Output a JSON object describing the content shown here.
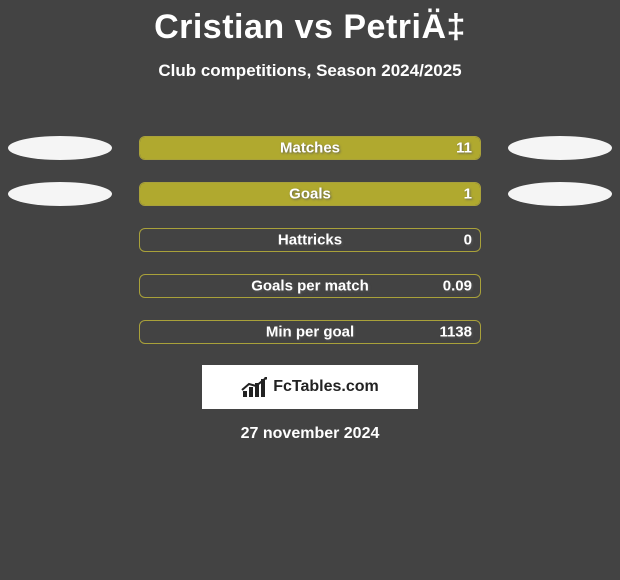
{
  "header": {
    "title": "Cristian vs PetriÄ‡",
    "subtitle": "Club competitions, Season 2024/2025"
  },
  "colors": {
    "background": "#434343",
    "pill_fill": "#b0a92f",
    "pill_border": "#a9a13a",
    "ellipse": "#f5f5f5",
    "text": "#ffffff",
    "brand_bg": "#ffffff",
    "brand_text": "#222222"
  },
  "layout": {
    "pill_width": 342,
    "pill_height": 24,
    "pill_radius": 6,
    "ellipse_width": 104,
    "ellipse_height": 24,
    "title_fontsize": 34,
    "subtitle_fontsize": 17,
    "label_fontsize": 15,
    "date_fontsize": 16
  },
  "stats": [
    {
      "label": "Matches",
      "left_value": "",
      "right_value": "11",
      "left_pct": 0,
      "right_pct": 100,
      "show_left_ellipse": true,
      "show_right_ellipse": true
    },
    {
      "label": "Goals",
      "left_value": "",
      "right_value": "1",
      "left_pct": 0,
      "right_pct": 100,
      "show_left_ellipse": true,
      "show_right_ellipse": true
    },
    {
      "label": "Hattricks",
      "left_value": "",
      "right_value": "0",
      "left_pct": 0,
      "right_pct": 0,
      "show_left_ellipse": false,
      "show_right_ellipse": false
    },
    {
      "label": "Goals per match",
      "left_value": "",
      "right_value": "0.09",
      "left_pct": 0,
      "right_pct": 0,
      "show_left_ellipse": false,
      "show_right_ellipse": false
    },
    {
      "label": "Min per goal",
      "left_value": "",
      "right_value": "1138",
      "left_pct": 0,
      "right_pct": 0,
      "show_left_ellipse": false,
      "show_right_ellipse": false
    }
  ],
  "branding": {
    "text": "FcTables.com"
  },
  "date": "27 november 2024"
}
